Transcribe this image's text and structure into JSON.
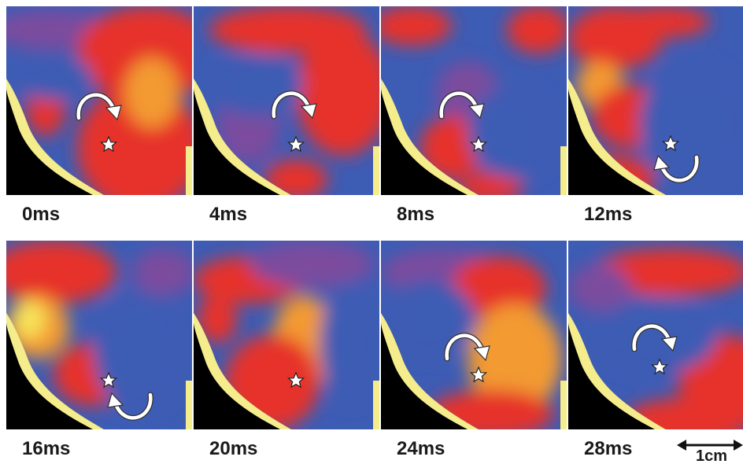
{
  "panels": [
    {
      "label": "0ms"
    },
    {
      "label": "4ms"
    },
    {
      "label": "8ms"
    },
    {
      "label": "12ms"
    },
    {
      "label": "16ms"
    },
    {
      "label": "20ms"
    },
    {
      "label": "24ms"
    },
    {
      "label": "28ms"
    }
  ],
  "scale_bar": "1cm"
}
